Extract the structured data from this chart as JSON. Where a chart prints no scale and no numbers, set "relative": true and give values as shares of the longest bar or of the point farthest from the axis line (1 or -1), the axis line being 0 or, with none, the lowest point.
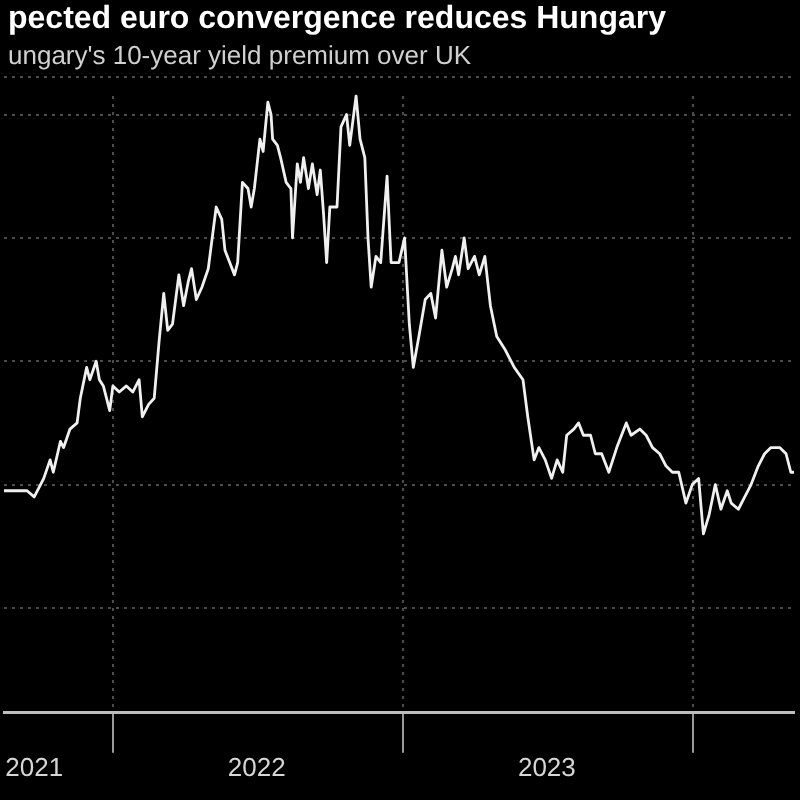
{
  "chart_data": {
    "type": "line",
    "title": "pected euro convergence reduces Hungary",
    "subtitle": "ungary's 10-year yield premium over UK",
    "relative": true,
    "color": "#f0f0f0",
    "grid": true,
    "x": [
      "2021-08-17",
      "2021-08-26",
      "2021-09-03",
      "2021-09-15",
      "2021-09-24",
      "2021-10-02",
      "2021-10-06",
      "2021-10-14",
      "2021-10-18",
      "2021-10-27",
      "2021-10-31",
      "2021-11-08",
      "2021-11-17",
      "2021-11-21",
      "2021-11-29",
      "2021-12-03",
      "2021-12-11",
      "2021-12-15",
      "2021-12-20",
      "2021-12-28",
      "2022-01-01",
      "2022-01-09",
      "2022-01-18",
      "2022-01-26",
      "2022-02-03",
      "2022-02-07",
      "2022-02-15",
      "2022-02-22",
      "2022-02-28",
      "2022-03-06",
      "2022-03-11",
      "2022-03-17",
      "2022-03-25",
      "2022-03-31",
      "2022-04-06",
      "2022-04-10",
      "2022-04-16",
      "2022-04-23",
      "2022-05-01",
      "2022-05-05",
      "2022-05-11",
      "2022-05-18",
      "2022-05-22",
      "2022-05-28",
      "2022-06-03",
      "2022-06-07",
      "2022-06-13",
      "2022-06-20",
      "2022-06-24",
      "2022-06-28",
      "2022-07-05",
      "2022-07-09",
      "2022-07-15",
      "2022-07-19",
      "2022-07-21",
      "2022-07-27",
      "2022-07-31",
      "2022-08-07",
      "2022-08-13",
      "2022-08-15",
      "2022-08-21",
      "2022-08-25",
      "2022-08-29",
      "2022-09-04",
      "2022-09-09",
      "2022-09-15",
      "2022-09-19",
      "2022-09-23",
      "2022-09-27",
      "2022-10-01",
      "2022-10-10",
      "2022-10-15",
      "2022-10-22",
      "2022-10-26",
      "2022-11-03",
      "2022-11-08",
      "2022-11-14",
      "2022-11-18",
      "2022-11-22",
      "2022-11-28",
      "2022-12-04",
      "2022-12-12",
      "2022-12-17",
      "2022-12-27",
      "2023-01-03",
      "2023-01-09",
      "2023-01-14",
      "2023-01-21",
      "2023-01-29",
      "2023-02-05",
      "2023-02-11",
      "2023-02-19",
      "2023-02-25",
      "2023-03-04",
      "2023-03-08",
      "2023-03-12",
      "2023-03-19",
      "2023-03-24",
      "2023-04-01",
      "2023-04-07",
      "2023-04-14",
      "2023-04-21",
      "2023-04-29",
      "2023-05-09",
      "2023-05-21",
      "2023-06-01",
      "2023-06-07",
      "2023-06-15",
      "2023-06-21",
      "2023-06-29",
      "2023-07-07",
      "2023-07-14",
      "2023-07-21",
      "2023-07-26",
      "2023-08-04",
      "2023-08-10",
      "2023-08-16",
      "2023-08-25",
      "2023-08-31",
      "2023-09-08",
      "2023-09-17",
      "2023-09-27",
      "2023-10-09",
      "2023-10-15",
      "2023-10-26",
      "2023-11-03",
      "2023-11-11",
      "2023-11-20",
      "2023-11-28",
      "2023-12-06",
      "2023-12-14",
      "2023-12-23",
      "2023-12-31",
      "2024-01-08",
      "2024-01-14",
      "2024-01-21",
      "2024-01-29",
      "2024-02-05",
      "2024-02-13",
      "2024-02-18",
      "2024-02-27",
      "2024-03-06",
      "2024-03-14",
      "2024-03-23",
      "2024-03-31",
      "2024-04-08",
      "2024-04-19",
      "2024-04-27",
      "2024-05-03",
      "2024-05-07"
    ],
    "values": [
      0.36,
      0.36,
      0.36,
      0.36,
      0.35,
      0.37,
      0.38,
      0.41,
      0.39,
      0.44,
      0.43,
      0.46,
      0.47,
      0.51,
      0.56,
      0.54,
      0.57,
      0.54,
      0.53,
      0.49,
      0.53,
      0.52,
      0.53,
      0.52,
      0.54,
      0.48,
      0.5,
      0.51,
      0.6,
      0.68,
      0.62,
      0.63,
      0.71,
      0.66,
      0.7,
      0.72,
      0.67,
      0.69,
      0.72,
      0.76,
      0.82,
      0.8,
      0.75,
      0.73,
      0.71,
      0.73,
      0.86,
      0.85,
      0.82,
      0.85,
      0.93,
      0.91,
      0.99,
      0.97,
      0.93,
      0.92,
      0.9,
      0.86,
      0.85,
      0.77,
      0.89,
      0.86,
      0.9,
      0.85,
      0.89,
      0.84,
      0.88,
      0.81,
      0.73,
      0.82,
      0.82,
      0.95,
      0.97,
      0.92,
      1.0,
      0.93,
      0.9,
      0.77,
      0.69,
      0.74,
      0.73,
      0.87,
      0.73,
      0.73,
      0.77,
      0.63,
      0.56,
      0.61,
      0.67,
      0.68,
      0.64,
      0.75,
      0.69,
      0.72,
      0.74,
      0.71,
      0.77,
      0.72,
      0.74,
      0.71,
      0.74,
      0.66,
      0.61,
      0.59,
      0.56,
      0.54,
      0.48,
      0.41,
      0.43,
      0.41,
      0.38,
      0.41,
      0.39,
      0.45,
      0.46,
      0.47,
      0.45,
      0.45,
      0.42,
      0.42,
      0.39,
      0.43,
      0.47,
      0.45,
      0.46,
      0.45,
      0.43,
      0.42,
      0.4,
      0.39,
      0.39,
      0.34,
      0.37,
      0.38,
      0.29,
      0.32,
      0.37,
      0.33,
      0.36,
      0.34,
      0.33,
      0.35,
      0.37,
      0.4,
      0.42,
      0.43,
      0.43,
      0.42,
      0.39,
      0.39
    ],
    "xlim": [
      "2021-08-17",
      "2024-05-07"
    ],
    "xticks": [
      {
        "value": "2021-09-24",
        "label": "2021"
      },
      {
        "value": "2022-01-01",
        "label": null
      },
      {
        "value": "2022-07-01",
        "label": "2022"
      },
      {
        "value": "2023-01-01",
        "label": null
      },
      {
        "value": "2023-07-01",
        "label": "2023"
      },
      {
        "value": "2024-01-01",
        "label": null
      }
    ]
  }
}
